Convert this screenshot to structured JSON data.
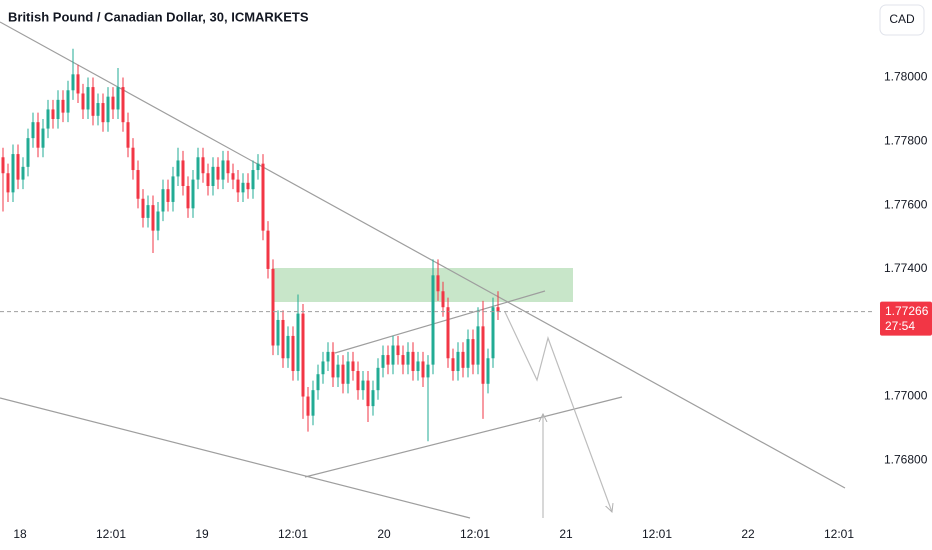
{
  "chart_data": {
    "type": "candlestick",
    "title": "British Pound / Canadian Dollar, 30, ICMARKETS",
    "currency": "CAD",
    "countdown": "27:54",
    "up_color": "#22ab94",
    "down_color": "#f23645",
    "ylim": [
      1.76613,
      1.78243
    ],
    "yticks": [
      {
        "value": 1.768,
        "label": "1.76800"
      },
      {
        "value": 1.77,
        "label": "1.77000"
      },
      {
        "value": 1.774,
        "label": "1.77400"
      },
      {
        "value": 1.776,
        "label": "1.77600"
      },
      {
        "value": 1.778,
        "label": "1.77800"
      },
      {
        "value": 1.78,
        "label": "1.78000"
      }
    ],
    "xticks": [
      "18",
      "12:01",
      "19",
      "12:01",
      "20",
      "12:01",
      "21",
      "12:01",
      "22",
      "12:01"
    ],
    "open": [
      1.7775,
      1.777,
      1.7764,
      1.7776,
      1.7768,
      1.7772,
      1.7781,
      1.7786,
      1.7778,
      1.7784,
      1.779,
      1.7787,
      1.7793,
      1.7789,
      1.7796,
      1.7801,
      1.7795,
      1.779,
      1.7797,
      1.7788,
      1.7792,
      1.7786,
      1.7794,
      1.779,
      1.7797,
      1.7786,
      1.7778,
      1.7771,
      1.7762,
      1.7756,
      1.776,
      1.7752,
      1.7758,
      1.7765,
      1.7761,
      1.7769,
      1.7774,
      1.7766,
      1.7759,
      1.7768,
      1.7775,
      1.777,
      1.7766,
      1.7772,
      1.7768,
      1.7774,
      1.777,
      1.7768,
      1.7764,
      1.7767,
      1.7765,
      1.7771,
      1.7773,
      1.7752,
      1.774,
      1.7716,
      1.7724,
      1.7712,
      1.7719,
      1.7708,
      1.7726,
      1.77,
      1.7694,
      1.7702,
      1.7707,
      1.7711,
      1.7714,
      1.7706,
      1.771,
      1.7704,
      1.7711,
      1.7708,
      1.7702,
      1.7705,
      1.7697,
      1.7702,
      1.7709,
      1.7713,
      1.771,
      1.7716,
      1.7713,
      1.771,
      1.7714,
      1.7708,
      1.7711,
      1.7706,
      1.771,
      1.7738,
      1.7733,
      1.7728,
      1.7712,
      1.7708,
      1.7714,
      1.7709,
      1.7718,
      1.771,
      1.7722,
      1.7704,
      1.7712,
      1.7728
    ],
    "high": [
      1.7778,
      1.7773,
      1.7779,
      1.7779,
      1.7775,
      1.7784,
      1.7789,
      1.7789,
      1.7787,
      1.7793,
      1.7793,
      1.7796,
      1.7796,
      1.7799,
      1.7809,
      1.7804,
      1.7798,
      1.78,
      1.78,
      1.7795,
      1.7795,
      1.7797,
      1.7797,
      1.7803,
      1.78,
      1.7789,
      1.7781,
      1.7774,
      1.7765,
      1.7763,
      1.7763,
      1.7761,
      1.7768,
      1.7768,
      1.7772,
      1.7778,
      1.7777,
      1.7769,
      1.7771,
      1.7778,
      1.7778,
      1.7773,
      1.7775,
      1.7775,
      1.7777,
      1.7777,
      1.7773,
      1.7771,
      1.777,
      1.777,
      1.7774,
      1.7776,
      1.7776,
      1.7755,
      1.7743,
      1.7727,
      1.7727,
      1.7722,
      1.7722,
      1.7732,
      1.7729,
      1.7703,
      1.7705,
      1.771,
      1.7714,
      1.7717,
      1.7717,
      1.7713,
      1.7713,
      1.7714,
      1.7714,
      1.7711,
      1.7708,
      1.7708,
      1.7705,
      1.7712,
      1.7716,
      1.7716,
      1.7719,
      1.7719,
      1.7716,
      1.7717,
      1.7717,
      1.7714,
      1.7714,
      1.7713,
      1.7743,
      1.7743,
      1.7736,
      1.7731,
      1.7715,
      1.7717,
      1.7717,
      1.7721,
      1.7721,
      1.7728,
      1.773,
      1.7715,
      1.7731,
      1.7733
    ],
    "low": [
      1.7758,
      1.7761,
      1.7761,
      1.7765,
      1.7765,
      1.7769,
      1.7778,
      1.7775,
      1.7775,
      1.7781,
      1.7784,
      1.7784,
      1.7786,
      1.7786,
      1.7793,
      1.7792,
      1.7787,
      1.7787,
      1.7785,
      1.7785,
      1.7783,
      1.7783,
      1.7787,
      1.7787,
      1.7783,
      1.7775,
      1.7768,
      1.7759,
      1.7753,
      1.7753,
      1.7745,
      1.7749,
      1.7755,
      1.7758,
      1.7758,
      1.7766,
      1.7763,
      1.7756,
      1.7756,
      1.7765,
      1.7767,
      1.7763,
      1.7763,
      1.7765,
      1.7765,
      1.7767,
      1.7765,
      1.7761,
      1.7761,
      1.7762,
      1.7762,
      1.7768,
      1.7749,
      1.7737,
      1.7713,
      1.7713,
      1.7709,
      1.7709,
      1.7705,
      1.7705,
      1.7693,
      1.7689,
      1.7691,
      1.7699,
      1.7704,
      1.7708,
      1.7703,
      1.7703,
      1.7701,
      1.7701,
      1.7705,
      1.7699,
      1.7699,
      1.7692,
      1.7694,
      1.7699,
      1.7706,
      1.7707,
      1.7707,
      1.771,
      1.7707,
      1.7707,
      1.7705,
      1.7705,
      1.7703,
      1.7686,
      1.7707,
      1.773,
      1.7725,
      1.7709,
      1.7705,
      1.7705,
      1.7706,
      1.7706,
      1.7707,
      1.7707,
      1.7693,
      1.7701,
      1.7709,
      1.7724
    ],
    "close": [
      1.777,
      1.7764,
      1.7776,
      1.7768,
      1.7772,
      1.7781,
      1.7786,
      1.7778,
      1.7784,
      1.779,
      1.7787,
      1.7793,
      1.7789,
      1.7796,
      1.7801,
      1.7795,
      1.779,
      1.7797,
      1.7788,
      1.7792,
      1.7786,
      1.7794,
      1.779,
      1.7797,
      1.7786,
      1.7778,
      1.7771,
      1.7762,
      1.7756,
      1.776,
      1.7752,
      1.7758,
      1.7765,
      1.7761,
      1.7769,
      1.7774,
      1.7766,
      1.7759,
      1.7768,
      1.7775,
      1.777,
      1.7766,
      1.7772,
      1.7768,
      1.7774,
      1.777,
      1.7768,
      1.7764,
      1.7767,
      1.7765,
      1.7771,
      1.7773,
      1.7752,
      1.774,
      1.7716,
      1.7724,
      1.7712,
      1.7719,
      1.7708,
      1.7726,
      1.77,
      1.7694,
      1.7702,
      1.7707,
      1.7711,
      1.7714,
      1.7706,
      1.771,
      1.7704,
      1.7711,
      1.7708,
      1.7702,
      1.7705,
      1.7697,
      1.7702,
      1.7709,
      1.7713,
      1.771,
      1.7716,
      1.7713,
      1.771,
      1.7714,
      1.7708,
      1.7711,
      1.7706,
      1.771,
      1.7738,
      1.7733,
      1.7728,
      1.7712,
      1.7708,
      1.7714,
      1.7709,
      1.7718,
      1.771,
      1.7722,
      1.7704,
      1.7712,
      1.7728,
      1.77266
    ]
  }
}
